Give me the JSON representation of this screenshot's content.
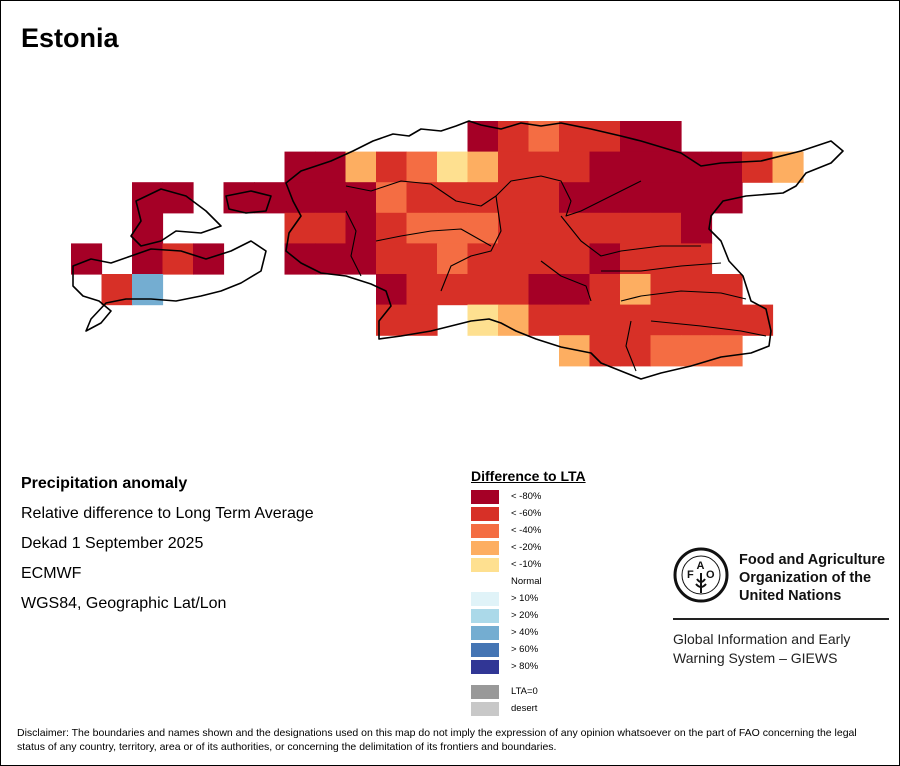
{
  "title": "Estonia",
  "info": {
    "heading": "Precipitation anomaly",
    "line1": "Relative difference to Long Term Average",
    "line2": "Dekad 1 September 2025",
    "line3": "ECMWF",
    "line4": "WGS84, Geographic Lat/Lon"
  },
  "legend": {
    "title": "Difference to LTA",
    "items": [
      {
        "code": "D",
        "label": "< -80%",
        "color": "#a50026"
      },
      {
        "code": "R",
        "label": "< -60%",
        "color": "#d73027"
      },
      {
        "code": "O",
        "label": "< -40%",
        "color": "#f46d43"
      },
      {
        "code": "L",
        "label": "< -20%",
        "color": "#fdae61"
      },
      {
        "code": "Y",
        "label": "< -10%",
        "color": "#fee090"
      },
      {
        "code": "N",
        "label": "Normal",
        "color": "#ffffff"
      },
      {
        "code": "b1",
        "label": "> 10%",
        "color": "#e0f3f8"
      },
      {
        "code": "b2",
        "label": "> 20%",
        "color": "#abd9e9"
      },
      {
        "code": "B",
        "label": "> 40%",
        "color": "#74add1"
      },
      {
        "code": "b4",
        "label": "> 60%",
        "color": "#4575b4"
      },
      {
        "code": "b5",
        "label": "> 80%",
        "color": "#313695"
      }
    ],
    "extra": [
      {
        "label": "LTA=0",
        "color": "#999999"
      },
      {
        "label": "desert",
        "color": "#c8c8c8"
      }
    ]
  },
  "grid": [
    ".............DRORRDD....",
    ".......DDLROYLRRRDDDDDRL",
    "..DD.DDDDDORRRRRDDDDDD..",
    "..D....RRDROOORRRRRRD...",
    "D.DRD..DDDRRORRRRDRRR...",
    ".RB.......DRRRRDDRLRRR..",
    "..........RR.YLRRRRRRRR.",
    "................LRROOO.."
  ],
  "fao": {
    "name_line1": "Food and Agriculture",
    "name_line2": "Organization of the",
    "name_line3": "United Nations",
    "logo_text": "FAO FIAT PANIS",
    "giews_line1": "Global Information and Early",
    "giews_line2": "Warning System – GIEWS"
  },
  "disclaimer": "Disclaimer: The boundaries and names shown and the designations used on this map do not imply the expression of any opinion whatsoever on the part of FAO concerning the legal status of any country, territory, area or of its authorities, or concerning the delimitation of its frontiers and boundaries."
}
